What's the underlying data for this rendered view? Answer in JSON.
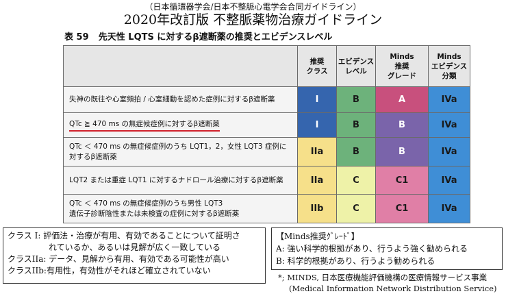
{
  "header": {
    "subtitle": "（日本循環器学会/日本不整脈心電学会合同ガイドライン）",
    "title": "2020年改訂版 不整脈薬物治療ガイドライン"
  },
  "table": {
    "number": "表 59",
    "caption": "先天性 LQTS に対するβ遮断薬の推奨とエビデンスレベル",
    "headers": [
      "推奨\nクラス",
      "エビデンス\nレベル",
      "Minds\n推奨\nグレード",
      "Minds\nエビデンス\n分類"
    ],
    "rows": [
      {
        "desc": "失神の既往や心室頻拍 / 心室細動を認めた症例に対するβ遮断薬",
        "class": "I",
        "evidence": "B",
        "grade": "A",
        "minds": "IVa"
      },
      {
        "desc": "QTc ≧ 470 ms の無症候症例に対するβ遮断薬",
        "class": "I",
        "evidence": "B",
        "grade": "B",
        "minds": "IVa"
      },
      {
        "desc": "QTc ＜ 470 ms の無症候症例のうち LQT1，2，女性 LQT3 症例に\n対するβ遮断薬",
        "class": "IIa",
        "evidence": "B",
        "grade": "B",
        "minds": "IVa"
      },
      {
        "desc": "LQT2 または重症 LQT1 に対するナドロール治療に対するβ遮断薬",
        "class": "IIa",
        "evidence": "C",
        "grade": "C1",
        "minds": "IVa"
      },
      {
        "desc": "QTc ＜ 470 ms の無症候症例のうち男性 LQT3\n遺伝子診断陰性または未検査の症例に対するβ遮断薬",
        "class": "IIb",
        "evidence": "C",
        "grade": "C1",
        "minds": "IVa"
      }
    ]
  },
  "colors": {
    "class_col": "#3565ae",
    "class_iia_iib": "#f6e08a",
    "evidence_b": "#6db27b",
    "evidence_c": "#eef2a8",
    "grade_a": "#c8507d",
    "grade_b": "#7a64aa",
    "grade_c1": "#e07fa6",
    "minds_col": "#3f8ed6"
  },
  "legend_class": {
    "line1": "クラス I: 評価法・治療が有用、有効であることについて証明さ",
    "line2": "れているか、あるいは見解が広く一致している",
    "line3": "クラスIIa: データ、見解から有用、有効である可能性が高い",
    "line4": "クラスIIb:有用性，有効性がそれほど確立されていない"
  },
  "legend_minds": {
    "title": "【Minds推奨ｸﾞﾚｰﾄﾞ】",
    "a": "A: 強い科学的根拠があり、行うよう強く勧められる",
    "b": "B: 科学的根拠があり、行うよう勧められる"
  },
  "footnote": {
    "line1": "*; MINDS, 日本医療機能評価機構の医療情報サービス事業",
    "line2": "(Medical Information Network Distribution Service)"
  }
}
